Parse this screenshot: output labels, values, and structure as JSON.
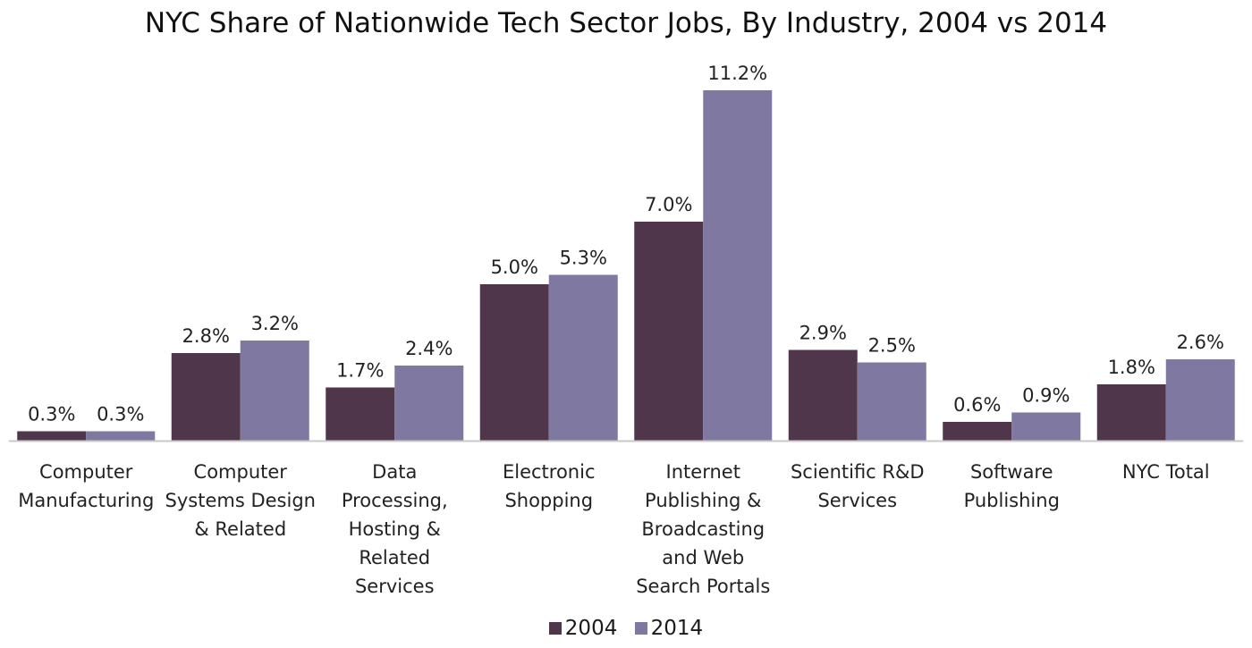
{
  "chart_data": {
    "type": "bar",
    "title": "NYC Share of Nationwide Tech Sector Jobs, By Industry, 2004 vs 2014",
    "xlabel": "",
    "ylabel": "",
    "ylim": [
      0,
      12
    ],
    "grid": false,
    "legend_position": "bottom",
    "categories": [
      [
        "Computer",
        "Manufacturing"
      ],
      [
        "Computer",
        "Systems Design",
        "& Related"
      ],
      [
        "Data",
        "Processing,",
        "Hosting &",
        "Related",
        "Services"
      ],
      [
        "Electronic",
        "Shopping"
      ],
      [
        "Internet",
        "Publishing &",
        "Broadcasting",
        "and Web",
        "Search  Portals"
      ],
      [
        "Scientific R&D",
        "Services"
      ],
      [
        "Software",
        "Publishing"
      ],
      [
        "NYC Total"
      ]
    ],
    "series": [
      {
        "name": "2004",
        "color": "#50364a",
        "values": [
          0.3,
          2.8,
          1.7,
          5.0,
          7.0,
          2.9,
          0.6,
          1.8
        ],
        "labels": [
          "0.3%",
          "2.8%",
          "1.7%",
          "5.0%",
          "7.0%",
          "2.9%",
          "0.6%",
          "1.8%"
        ]
      },
      {
        "name": "2014",
        "color": "#7f79a1",
        "values": [
          0.3,
          3.2,
          2.4,
          5.3,
          11.2,
          2.5,
          0.9,
          2.6
        ],
        "labels": [
          "0.3%",
          "3.2%",
          "2.4%",
          "5.3%",
          "11.2%",
          "2.5%",
          "0.9%",
          "2.6%"
        ]
      }
    ]
  }
}
